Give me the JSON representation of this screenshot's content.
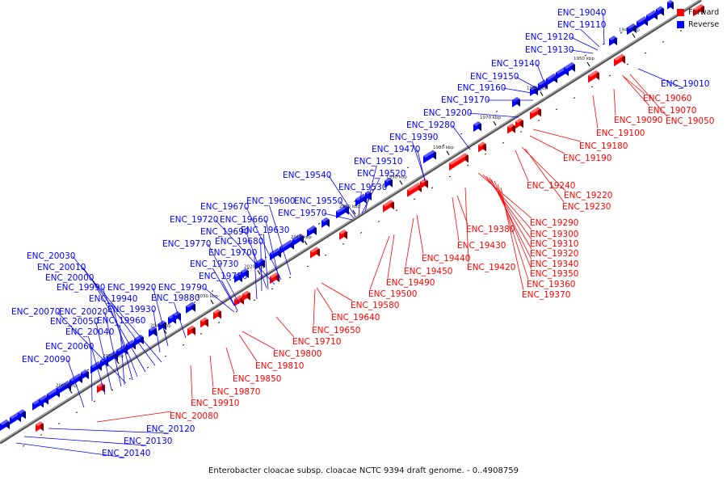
{
  "caption": "Enterobacter cloacae subsp. cloacae NCTC 9394 draft genome. - 0..4908759",
  "legend": [
    {
      "label": "Forward",
      "color": "#ff0000"
    },
    {
      "label": "Reverse",
      "color": "#0000ff"
    }
  ],
  "colors": {
    "forward": "#ff0000",
    "reverse": "#0000ff",
    "backbone": "#888888"
  },
  "ticks": [
    "1940 kbp",
    "1950 kbp",
    "1960 kbp",
    "1970 kbp",
    "1980 kbp",
    "1990 kbp",
    "2000 kbp",
    "2010 kbp",
    "2020 kbp",
    "2030 kbp",
    "2040 kbp",
    "2050 kbp",
    "2060 kbp"
  ],
  "reverse_labels": [
    "ENC_19040",
    "ENC_19110",
    "ENC_19120",
    "ENC_19130",
    "ENC_19140",
    "ENC_19150",
    "ENC_19160",
    "ENC_19170",
    "ENC_19200",
    "ENC_19280",
    "ENC_19390",
    "ENC_19470",
    "ENC_19510",
    "ENC_19520",
    "ENC_19530",
    "ENC_19540",
    "ENC_19550",
    "ENC_19570",
    "ENC_19600",
    "ENC_19670",
    "ENC_19660",
    "ENC_19720",
    "ENC_19690",
    "ENC_19630",
    "ENC_19680",
    "ENC_19770",
    "ENC_19700",
    "ENC_19730",
    "ENC_19780",
    "ENC_19790",
    "ENC_19880",
    "ENC_20030",
    "ENC_20010",
    "ENC_20000",
    "ENC_19990",
    "ENC_19920",
    "ENC_19940",
    "ENC_19930",
    "ENC_20070",
    "ENC_20020",
    "ENC_19960",
    "ENC_20050",
    "ENC_20040",
    "ENC_20060",
    "ENC_20090",
    "ENC_20120",
    "ENC_20130",
    "ENC_20140",
    "ENC_19010"
  ],
  "forward_labels": [
    "ENC_19060",
    "ENC_19070",
    "ENC_19090",
    "ENC_19050",
    "ENC_19100",
    "ENC_19180",
    "ENC_19190",
    "ENC_19240",
    "ENC_19220",
    "ENC_19230",
    "ENC_19290",
    "ENC_19300",
    "ENC_19310",
    "ENC_19320",
    "ENC_19340",
    "ENC_19350",
    "ENC_19360",
    "ENC_19370",
    "ENC_19380",
    "ENC_19430",
    "ENC_19440",
    "ENC_19420",
    "ENC_19450",
    "ENC_19490",
    "ENC_19500",
    "ENC_19580",
    "ENC_19640",
    "ENC_19650",
    "ENC_19710",
    "ENC_19800",
    "ENC_19810",
    "ENC_19850",
    "ENC_19870",
    "ENC_19910",
    "ENC_20080"
  ]
}
